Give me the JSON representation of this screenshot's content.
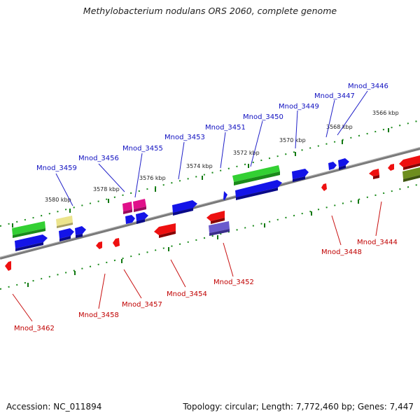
{
  "header": {
    "title": "Methylobacterium nodulans ORS 2060, complete genome"
  },
  "footer": {
    "accession": "Accession: NC_011894",
    "topology": "Topology: circular; Length: 7,772,460 bp; Genes: 7,447"
  },
  "colors": {
    "forward_label": "#1010c0",
    "reverse_label": "#c00000",
    "cds_forward": "#0a0ad8",
    "cds_reverse": "#e80000",
    "rna_green": "#22c422",
    "pink": "#e0108a",
    "pale_yellow": "#e8e08a",
    "purple": "#6a5acd",
    "olive": "#6e8e1e",
    "backbone": "#808080",
    "tick": "#118811"
  },
  "ticks": [
    "3566 kbp",
    "3568 kbp",
    "3570 kbp",
    "3572 kbp",
    "3574 kbp",
    "3576 kbp",
    "3578 kbp",
    "3580 kbp"
  ],
  "forward_genes": [
    "Mnod_3446",
    "Mnod_3447",
    "Mnod_3449",
    "Mnod_3450",
    "Mnod_3451",
    "Mnod_3453",
    "Mnod_3455",
    "Mnod_3456",
    "Mnod_3459"
  ],
  "reverse_genes": [
    "Mnod_3444",
    "Mnod_3448",
    "Mnod_3452",
    "Mnod_3454",
    "Mnod_3457",
    "Mnod_3458",
    "Mnod_3462"
  ]
}
